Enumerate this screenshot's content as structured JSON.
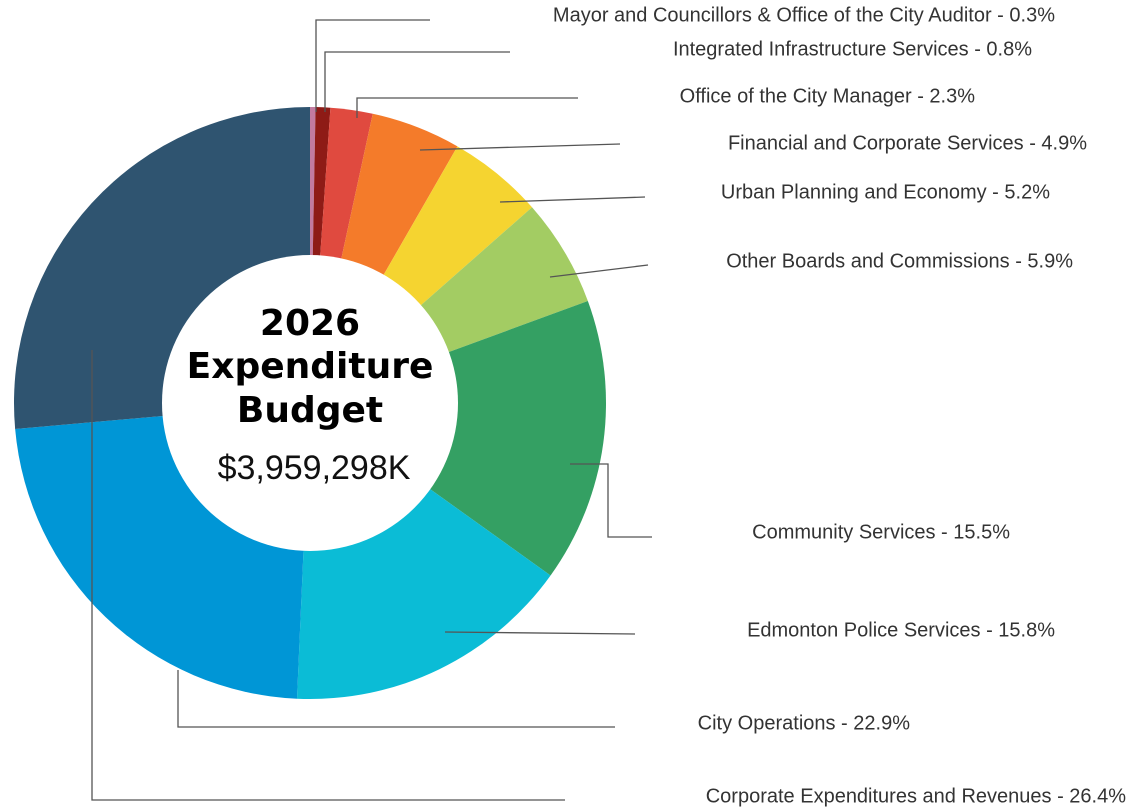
{
  "chart_data": {
    "type": "donut",
    "center_title": [
      "2026",
      "Expenditure",
      "Budget"
    ],
    "center_value": "$3,959,298K",
    "categories": [
      "Mayor and Councillors & Office of the City Auditor - 0.3%",
      "Integrated Infrastructure Services - 0.8%",
      "Office of the City Manager - 2.3%",
      "Financial and Corporate Services - 4.9%",
      "Urban Planning and Economy - 5.2%",
      "Other Boards and Commissions - 5.9%",
      "Community Services - 15.5%",
      "Edmonton Police Services - 15.8%",
      "City Operations - 22.9%",
      "Corporate Expenditures and Revenues - 26.4%"
    ],
    "values": [
      0.3,
      0.8,
      2.3,
      4.9,
      5.2,
      5.9,
      15.5,
      15.8,
      22.9,
      26.4
    ],
    "colors": [
      "#c27ba0",
      "#8e1b16",
      "#e04a3f",
      "#f47b2a",
      "#f5d430",
      "#a3cc63",
      "#34a063",
      "#0bbcd6",
      "#0096d6",
      "#2f5470"
    ]
  }
}
